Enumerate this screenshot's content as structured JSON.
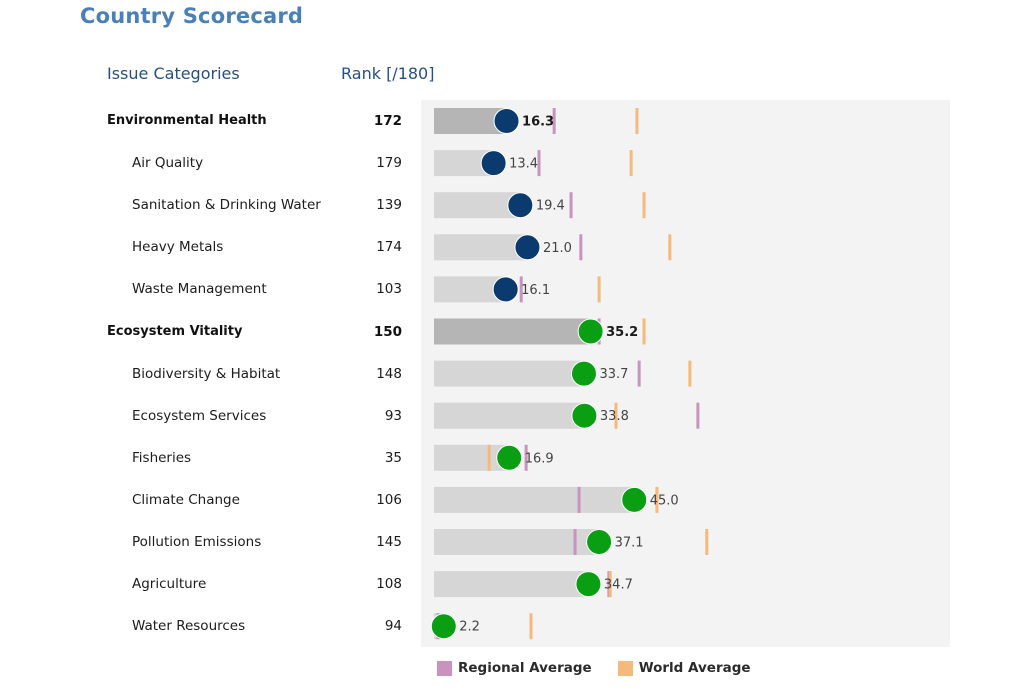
{
  "page": {
    "title": "Country Scorecard",
    "col_category": "Issue Categories",
    "col_rank": "Rank [/180]"
  },
  "colors": {
    "environmental_health": "#0b3a6e",
    "ecosystem_vitality": "#0a9e13",
    "category_bar": "#b5b5b5",
    "sub_bar": "#d6d6d6",
    "regional": "#c993c0",
    "world": "#f5b97a",
    "panel": "#f3f3f3"
  },
  "legend": {
    "regional": "Regional Average",
    "world": "World Average"
  },
  "chart_data": {
    "type": "bar",
    "title": "Country Scorecard",
    "xlabel": "",
    "ylabel": "",
    "xlim": [
      0,
      100
    ],
    "grid": false,
    "legend_position": "bottom",
    "categories": [
      "Environmental Health",
      "Air Quality",
      "Sanitation & Drinking Water",
      "Heavy Metals",
      "Waste Management",
      "Ecosystem Vitality",
      "Biodiversity & Habitat",
      "Ecosystem Services",
      "Fisheries",
      "Climate Change",
      "Pollution Emissions",
      "Agriculture",
      "Water Resources"
    ],
    "rows": [
      {
        "label": "Environmental Health",
        "level": "category",
        "group": "environmental_health",
        "rank": "172",
        "score": 16.3,
        "score_label": "16.3",
        "regional": 27.0,
        "world": 45.6
      },
      {
        "label": "Air Quality",
        "level": "sub",
        "group": "environmental_health",
        "rank": "179",
        "score": 13.4,
        "score_label": "13.4",
        "regional": 23.6,
        "world": 44.3
      },
      {
        "label": "Sanitation & Drinking Water",
        "level": "sub",
        "group": "environmental_health",
        "rank": "139",
        "score": 19.4,
        "score_label": "19.4",
        "regional": 30.8,
        "world": 47.2
      },
      {
        "label": "Heavy Metals",
        "level": "sub",
        "group": "environmental_health",
        "rank": "174",
        "score": 21.0,
        "score_label": "21.0",
        "regional": 33.0,
        "world": 53.0
      },
      {
        "label": "Waste Management",
        "level": "sub",
        "group": "environmental_health",
        "rank": "103",
        "score": 16.1,
        "score_label": "16.1",
        "regional": 19.6,
        "world": 37.1
      },
      {
        "label": "Ecosystem Vitality",
        "level": "category",
        "group": "ecosystem_vitality",
        "rank": "150",
        "score": 35.2,
        "score_label": "35.2",
        "regional": 37.1,
        "world": 47.2
      },
      {
        "label": "Biodiversity & Habitat",
        "level": "sub",
        "group": "ecosystem_vitality",
        "rank": "148",
        "score": 33.7,
        "score_label": "33.7",
        "regional": 46.1,
        "world": 57.5
      },
      {
        "label": "Ecosystem Services",
        "level": "sub",
        "group": "ecosystem_vitality",
        "rank": "93",
        "score": 33.8,
        "score_label": "33.8",
        "regional": 59.3,
        "world": 40.9
      },
      {
        "label": "Fisheries",
        "level": "sub",
        "group": "ecosystem_vitality",
        "rank": "35",
        "score": 16.9,
        "score_label": "16.9",
        "regional": 20.7,
        "world": 12.4
      },
      {
        "label": "Climate Change",
        "level": "sub",
        "group": "ecosystem_vitality",
        "rank": "106",
        "score": 45.0,
        "score_label": "45.0",
        "regional": 32.6,
        "world": 50.1
      },
      {
        "label": "Pollution Emissions",
        "level": "sub",
        "group": "ecosystem_vitality",
        "rank": "145",
        "score": 37.1,
        "score_label": "37.1",
        "regional": 31.7,
        "world": 61.3
      },
      {
        "label": "Agriculture",
        "level": "sub",
        "group": "ecosystem_vitality",
        "rank": "108",
        "score": 34.7,
        "score_label": "34.7",
        "regional": 39.3,
        "world": 39.6
      },
      {
        "label": "Water Resources",
        "level": "sub",
        "group": "ecosystem_vitality",
        "rank": "94",
        "score": 2.2,
        "score_label": "2.2",
        "regional": 0.9,
        "world": 21.8
      }
    ],
    "series": [
      {
        "name": "Score",
        "values": [
          16.3,
          13.4,
          19.4,
          21.0,
          16.1,
          35.2,
          33.7,
          33.8,
          16.9,
          45.0,
          37.1,
          34.7,
          2.2
        ]
      },
      {
        "name": "Regional Average",
        "values": [
          27.0,
          23.6,
          30.8,
          33.0,
          19.6,
          37.1,
          46.1,
          59.3,
          20.7,
          32.6,
          31.7,
          39.3,
          0.9
        ]
      },
      {
        "name": "World Average",
        "values": [
          45.6,
          44.3,
          47.2,
          53.0,
          37.1,
          47.2,
          57.5,
          40.9,
          12.4,
          50.1,
          61.3,
          39.6,
          21.8
        ]
      }
    ],
    "legend": [
      "Regional Average",
      "World Average"
    ]
  }
}
